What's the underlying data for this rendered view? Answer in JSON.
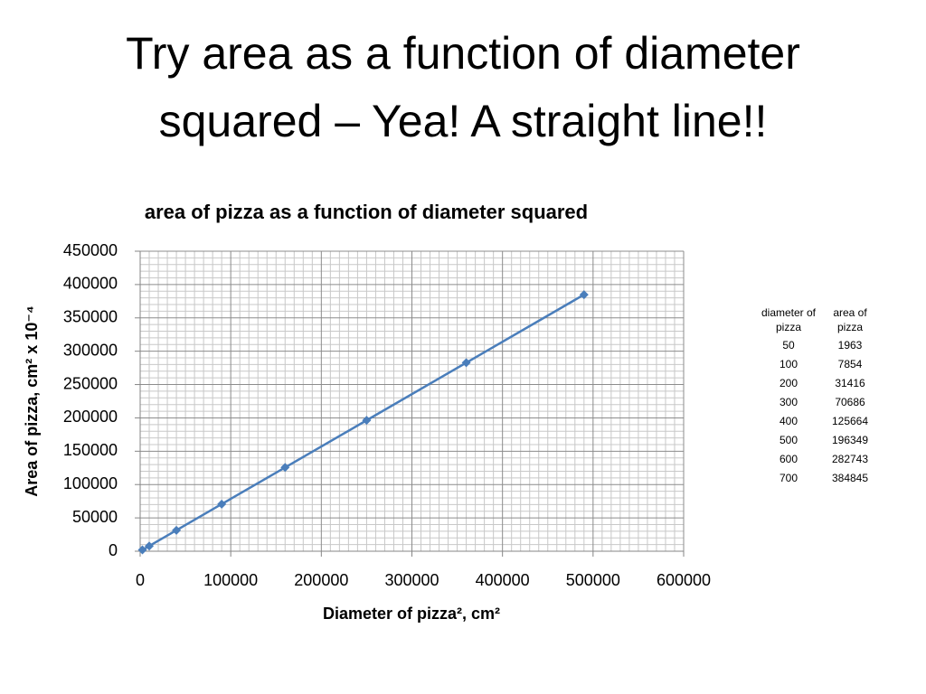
{
  "slide_title": [
    "Try area as a function of diameter",
    "squared – Yea! A straight line!!"
  ],
  "chart_data": {
    "type": "scatter-line",
    "title": "area of pizza as a function of diameter squared",
    "x_label": "Diameter of pizza², cm²",
    "y_label": "Area of pizza, cm² x 10⁻⁴",
    "x": [
      2500,
      10000,
      40000,
      90000,
      160000,
      250000,
      360000,
      490000
    ],
    "series": [
      {
        "color": "#4a7ebb",
        "values": [
          1963,
          7854,
          31416,
          70686,
          125664,
          196349,
          282743,
          384845
        ]
      }
    ],
    "xlim": [
      0,
      600000
    ],
    "xticks": [
      0,
      100000,
      200000,
      300000,
      400000,
      500000,
      600000
    ],
    "ylim": [
      0,
      450000
    ],
    "yticks": [
      0,
      50000,
      100000,
      150000,
      200000,
      250000,
      300000,
      350000,
      400000,
      450000
    ],
    "grid": true,
    "minor_grid": true
  },
  "table": {
    "header": [
      "diameter of pizza",
      "area of pizza"
    ],
    "rows": [
      [
        "50",
        "1963"
      ],
      [
        "100",
        "7854"
      ],
      [
        "200",
        "31416"
      ],
      [
        "300",
        "70686"
      ],
      [
        "400",
        "125664"
      ],
      [
        "500",
        "196349"
      ],
      [
        "600",
        "282743"
      ],
      [
        "700",
        "384845"
      ]
    ]
  }
}
